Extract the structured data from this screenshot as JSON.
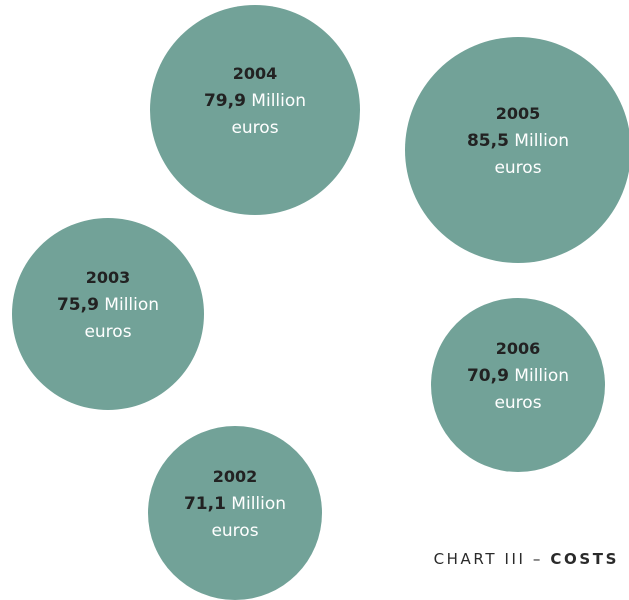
{
  "chart_data": {
    "type": "bubble",
    "caption_prefix": "CHART III – ",
    "caption_emphasis": "COSTS",
    "unit_word": "Million",
    "currency_word": "euros",
    "colors": {
      "bubble_fill": "#72a298",
      "year_text": "#222222",
      "value_text": "#ffffff",
      "caption_text": "#2a2a2a"
    },
    "points": [
      {
        "year": "2004",
        "value": 79.9,
        "label": "79,9"
      },
      {
        "year": "2005",
        "value": 85.5,
        "label": "85,5"
      },
      {
        "year": "2003",
        "value": 75.9,
        "label": "75,9"
      },
      {
        "year": "2006",
        "value": 70.9,
        "label": "70,9"
      },
      {
        "year": "2002",
        "value": 71.1,
        "label": "71,1"
      }
    ]
  }
}
